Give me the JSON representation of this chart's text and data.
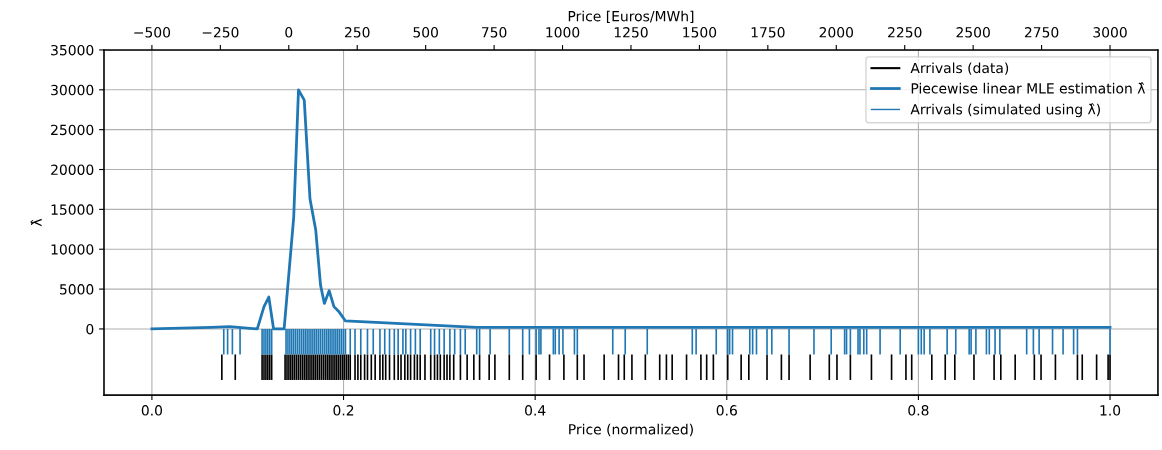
{
  "chart_data": {
    "type": "line",
    "xlabel": "Price (normalized)",
    "ylabel": "λ̂",
    "x2label": "Price [Euros/MWh]",
    "xlim": [
      -0.05,
      1.05
    ],
    "xticks": [
      {
        "value": 0,
        "label": "0.0"
      },
      {
        "value": 0.2,
        "label": "0.2"
      },
      {
        "value": 0.4,
        "label": "0.4"
      },
      {
        "value": 0.6,
        "label": "0.6"
      },
      {
        "value": 0.8,
        "label": "0.8"
      },
      {
        "value": 1,
        "label": "1.0"
      }
    ],
    "x2lim": [
      -675,
      3175
    ],
    "x2ticks": [
      {
        "value": -500,
        "label": "−500"
      },
      {
        "value": -250,
        "label": "−250"
      },
      0,
      250,
      500,
      750,
      1000,
      1250,
      1500,
      1750,
      2000,
      2250,
      2500,
      2750,
      3000
    ],
    "ylim": [
      -8300,
      35000
    ],
    "yticks": [
      0,
      5000,
      10000,
      15000,
      20000,
      25000,
      30000,
      35000
    ],
    "grid": true,
    "legend": "top right",
    "series": [
      {
        "name": "Arrivals (data)",
        "type": "bar",
        "color": "#000000",
        "x": [
          0.073,
          0.087,
          0.115,
          0.117,
          0.119,
          0.121,
          0.123,
          0.125,
          0.139,
          0.141,
          0.143,
          0.145,
          0.147,
          0.149,
          0.151,
          0.153,
          0.155,
          0.157,
          0.159,
          0.161,
          0.163,
          0.165,
          0.167,
          0.169,
          0.171,
          0.173,
          0.175,
          0.177,
          0.179,
          0.181,
          0.183,
          0.185,
          0.187,
          0.189,
          0.191,
          0.193,
          0.195,
          0.197,
          0.199,
          0.201,
          0.203,
          0.205,
          0.207,
          0.212,
          0.215,
          0.218,
          0.222,
          0.225,
          0.229,
          0.233,
          0.238,
          0.241,
          0.244,
          0.248,
          0.253,
          0.257,
          0.26,
          0.264,
          0.267,
          0.27,
          0.274,
          0.277,
          0.28,
          0.285,
          0.291,
          0.295,
          0.298,
          0.301,
          0.305,
          0.308,
          0.311,
          0.315,
          0.322,
          0.329,
          0.336,
          0.342,
          0.352,
          0.358,
          0.373,
          0.387,
          0.401,
          0.415,
          0.43,
          0.444,
          0.451,
          0.472,
          0.487,
          0.493,
          0.501,
          0.515,
          0.53,
          0.537,
          0.543,
          0.558,
          0.573,
          0.579,
          0.586,
          0.601,
          0.615,
          0.623,
          0.642,
          0.657,
          0.665,
          0.687,
          0.707,
          0.715,
          0.729,
          0.751,
          0.772,
          0.787,
          0.793,
          0.814,
          0.828,
          0.838,
          0.858,
          0.879,
          0.886,
          0.901,
          0.921,
          0.928,
          0.943,
          0.966,
          0.971,
          0.986,
          0.998,
          1.0
        ],
        "base": [
          -3200,
          -3200,
          -3200,
          -3200,
          -3200,
          -3200,
          -3200,
          -3200,
          -3200,
          -3200,
          -3200,
          -3200,
          -3200,
          -3200,
          -3200,
          -3200,
          -3200,
          -3200,
          -3200,
          -3200,
          -3200,
          -3200,
          -3200,
          -3200,
          -3200,
          -3200,
          -3200,
          -3200,
          -3200,
          -3200,
          -3200,
          -3200,
          -3200,
          -3200,
          -3200,
          -3200,
          -3200,
          -3200,
          -3200,
          -3200,
          -3200,
          -3200,
          -3200,
          -3200,
          -3200,
          -3200,
          -3200,
          -3200,
          -3200,
          -3200,
          -3200,
          -3200,
          -3200,
          -3200,
          -3200,
          -3200,
          -3200,
          -3200,
          -3200,
          -3200,
          -3200,
          -3200,
          -3200,
          -3200,
          -3200,
          -3200,
          -3200,
          -3200,
          -3200,
          -3200,
          -3200,
          -3200,
          -3200,
          -3200,
          -3200,
          -3200,
          -3200,
          -3200,
          -3200,
          -3200,
          -3200,
          -3200,
          -3200,
          -3200,
          -3200,
          -3200,
          -3200,
          -3200,
          -3200,
          -3200,
          -3200,
          -3200,
          -3200,
          -3200,
          -3200,
          -3200,
          -3200,
          -3200,
          -3200,
          -3200,
          -3200,
          -3200,
          -3200,
          -3200,
          -3200,
          -3200,
          -3200,
          -3200,
          -3200,
          -3200,
          -3200,
          -3200,
          -3200,
          -3200,
          -3200,
          -3200,
          -3200,
          -3200,
          -3200,
          -3200,
          -3200,
          -3200,
          -3200,
          -3200,
          -3200,
          -3200
        ],
        "values": [
          -3200,
          -3200,
          -3200,
          -3200,
          -3200,
          -3200,
          -3200,
          -3200,
          -3200,
          -3200,
          -3200,
          -3200,
          -3200,
          -3200,
          -3200,
          -3200,
          -3200,
          -3200,
          -3200,
          -3200,
          -3200,
          -3200,
          -3200,
          -3200,
          -3200,
          -3200,
          -3200,
          -3200,
          -3200,
          -3200,
          -3200,
          -3200,
          -3200,
          -3200,
          -3200,
          -3200,
          -3200,
          -3200,
          -3200,
          -3200,
          -3200,
          -3200,
          -3200,
          -3200,
          -3200,
          -3200,
          -3200,
          -3200,
          -3200,
          -3200,
          -3200,
          -3200,
          -3200,
          -3200,
          -3200,
          -3200,
          -3200,
          -3200,
          -3200,
          -3200,
          -3200,
          -3200,
          -3200,
          -3200,
          -3200,
          -3200,
          -3200,
          -3200,
          -3200,
          -3200,
          -3200,
          -3200,
          -3200,
          -3200,
          -3200,
          -3200,
          -3200,
          -3200,
          -3200,
          -3200,
          -3200,
          -3200,
          -3200,
          -3200,
          -3200,
          -3200,
          -3200,
          -3200,
          -3200,
          -3200,
          -3200,
          -3200,
          -3200,
          -3200,
          -3200,
          -3200,
          -3200,
          -3200,
          -3200,
          -3200,
          -3200,
          -3200,
          -3200,
          -3200,
          -3200,
          -3200,
          -3200,
          -3200,
          -3200,
          -3200,
          -3200,
          -3200,
          -3200,
          -3200,
          -3200,
          -3200,
          -3200,
          -3200,
          -3200,
          -3200,
          -3200,
          -3200,
          -3200,
          -3200,
          -3200,
          -3200
        ]
      },
      {
        "name": "Piecewise linear MLE estimation λ̂",
        "color": "#1f77b4",
        "x": [
          0,
          0.062,
          0.081,
          0.11,
          0.117,
          0.122,
          0.127,
          0.138,
          0.148,
          0.153,
          0.159,
          0.165,
          0.171,
          0.176,
          0.18,
          0.185,
          0.19,
          0.195,
          0.202,
          0.339,
          1.0
        ],
        "values": [
          0,
          200,
          300,
          0,
          2800,
          4000,
          0,
          0,
          14000,
          30000,
          28700,
          16300,
          12400,
          5500,
          3200,
          4800,
          2800,
          2200,
          1000,
          200,
          200
        ]
      },
      {
        "name": "Arrivals (simulated using λ̂)",
        "type": "bar",
        "color": "#1f77b4",
        "x": [
          0.075,
          0.079,
          0.084,
          0.092,
          0.115,
          0.117,
          0.119,
          0.121,
          0.123,
          0.125,
          0.14,
          0.142,
          0.144,
          0.146,
          0.148,
          0.15,
          0.152,
          0.154,
          0.156,
          0.158,
          0.16,
          0.162,
          0.164,
          0.166,
          0.168,
          0.17,
          0.172,
          0.174,
          0.176,
          0.178,
          0.18,
          0.182,
          0.184,
          0.186,
          0.188,
          0.19,
          0.192,
          0.194,
          0.196,
          0.198,
          0.2,
          0.202,
          0.207,
          0.212,
          0.218,
          0.225,
          0.231,
          0.238,
          0.243,
          0.248,
          0.253,
          0.257,
          0.262,
          0.265,
          0.27,
          0.275,
          0.28,
          0.291,
          0.295,
          0.3,
          0.305,
          0.311,
          0.316,
          0.322,
          0.327,
          0.339,
          0.342,
          0.353,
          0.373,
          0.387,
          0.394,
          0.401,
          0.404,
          0.406,
          0.419,
          0.421,
          0.425,
          0.429,
          0.441,
          0.444,
          0.481,
          0.494,
          0.517,
          0.564,
          0.568,
          0.589,
          0.601,
          0.603,
          0.606,
          0.624,
          0.627,
          0.631,
          0.642,
          0.647,
          0.665,
          0.691,
          0.709,
          0.723,
          0.725,
          0.729,
          0.737,
          0.739,
          0.743,
          0.746,
          0.76,
          0.781,
          0.8,
          0.803,
          0.806,
          0.812,
          0.83,
          0.839,
          0.853,
          0.855,
          0.86,
          0.871,
          0.874,
          0.88,
          0.885,
          0.913,
          0.92,
          0.926,
          0.94,
          0.951,
          0.962,
          0.966,
          1.0
        ],
        "values": [
          -3200,
          -3200,
          -3200,
          -3200,
          -3200,
          -3200,
          -3200,
          -3200,
          -3200,
          -3200,
          -3200,
          -3200,
          -3200,
          -3200,
          -3200,
          -3200,
          -3200,
          -3200,
          -3200,
          -3200,
          -3200,
          -3200,
          -3200,
          -3200,
          -3200,
          -3200,
          -3200,
          -3200,
          -3200,
          -3200,
          -3200,
          -3200,
          -3200,
          -3200,
          -3200,
          -3200,
          -3200,
          -3200,
          -3200,
          -3200,
          -3200,
          -3200,
          -3200,
          -3200,
          -3200,
          -3200,
          -3200,
          -3200,
          -3200,
          -3200,
          -3200,
          -3200,
          -3200,
          -3200,
          -3200,
          -3200,
          -3200,
          -3200,
          -3200,
          -3200,
          -3200,
          -3200,
          -3200,
          -3200,
          -3200,
          -3200,
          -3200,
          -3200,
          -3200,
          -3200,
          -3200,
          -3200,
          -3200,
          -3200,
          -3200,
          -3200,
          -3200,
          -3200,
          -3200,
          -3200,
          -3200,
          -3200,
          -3200,
          -3200,
          -3200,
          -3200,
          -3200,
          -3200,
          -3200,
          -3200,
          -3200,
          -3200,
          -3200,
          -3200,
          -3200,
          -3200,
          -3200,
          -3200,
          -3200,
          -3200,
          -3200,
          -3200,
          -3200,
          -3200,
          -3200,
          -3200,
          -3200,
          -3200,
          -3200,
          -3200,
          -3200,
          -3200,
          -3200,
          -3200,
          -3200,
          -3200,
          -3200,
          -3200,
          -3200,
          -3200,
          -3200,
          -3200,
          -3200,
          -3200,
          -3200,
          -3200,
          -3200
        ]
      }
    ]
  }
}
